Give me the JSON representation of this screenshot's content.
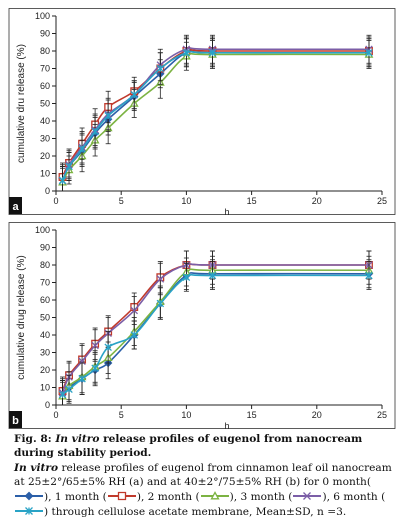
{
  "chart_data": [
    {
      "type": "line",
      "panel_label": "a",
      "xlabel": "h",
      "ylabel": "cumulative dru release (%)",
      "xlim": [
        0,
        25
      ],
      "ylim": [
        0,
        100
      ],
      "x_ticks": [
        "0",
        "5",
        "10",
        "15",
        "20",
        "25"
      ],
      "y_ticks": [
        "0",
        "10",
        "20",
        "30",
        "40",
        "50",
        "60",
        "70",
        "80",
        "90",
        "100"
      ],
      "grid": false,
      "x": [
        0.5,
        1,
        2,
        3,
        4,
        6,
        8,
        10,
        12,
        24
      ],
      "series": [
        {
          "name": "0 month",
          "color": "#2b5fa8",
          "marker": "diamond",
          "values": [
            7,
            14,
            23,
            33,
            41,
            54,
            67,
            79,
            79,
            79
          ],
          "errors": [
            8,
            8,
            9,
            9,
            9,
            8,
            8,
            8,
            8,
            8
          ]
        },
        {
          "name": "1 month",
          "color": "#c0392b",
          "marker": "square",
          "values": [
            8,
            16,
            27,
            38,
            48,
            57,
            70,
            80,
            80,
            80
          ],
          "errors": [
            8,
            8,
            9,
            9,
            9,
            8,
            9,
            8,
            8,
            8
          ]
        },
        {
          "name": "2 month",
          "color": "#7cb342",
          "marker": "triangle",
          "values": [
            5,
            12,
            20,
            29,
            36,
            50,
            62,
            77,
            78,
            78
          ],
          "errors": [
            8,
            8,
            9,
            9,
            9,
            8,
            9,
            8,
            8,
            8
          ]
        },
        {
          "name": "3 month",
          "color": "#7b5ea7",
          "marker": "x",
          "values": [
            6,
            15,
            25,
            35,
            44,
            55,
            72,
            81,
            81,
            81
          ],
          "errors": [
            8,
            8,
            9,
            9,
            9,
            8,
            9,
            8,
            8,
            8
          ]
        },
        {
          "name": "6 month",
          "color": "#29a3c6",
          "marker": "star",
          "values": [
            6,
            14,
            24,
            34,
            43,
            55,
            70,
            79,
            79,
            79
          ],
          "errors": [
            8,
            8,
            9,
            9,
            9,
            8,
            9,
            8,
            8,
            8
          ]
        }
      ]
    },
    {
      "type": "line",
      "panel_label": "b",
      "xlabel": "h",
      "ylabel": "cumulative drug release (%)",
      "xlim": [
        0,
        25
      ],
      "ylim": [
        0,
        100
      ],
      "x_ticks": [
        "0",
        "5",
        "10",
        "15",
        "20",
        "25"
      ],
      "y_ticks": [
        "0",
        "10",
        "20",
        "30",
        "40",
        "50",
        "60",
        "70",
        "80",
        "90",
        "100"
      ],
      "grid": false,
      "x": [
        0.5,
        1,
        2,
        3,
        4,
        6,
        8,
        10,
        12,
        24
      ],
      "series": [
        {
          "name": "0 month",
          "color": "#2b5fa8",
          "marker": "diamond",
          "values": [
            6,
            10,
            15,
            20,
            24,
            40,
            58,
            74,
            75,
            75
          ],
          "errors": [
            8,
            8,
            9,
            9,
            9,
            8,
            9,
            8,
            8,
            8
          ]
        },
        {
          "name": "1 month",
          "color": "#c0392b",
          "marker": "square",
          "values": [
            8,
            17,
            26,
            35,
            42,
            56,
            73,
            80,
            80,
            80
          ],
          "errors": [
            8,
            8,
            9,
            9,
            9,
            8,
            9,
            8,
            8,
            8
          ]
        },
        {
          "name": "2 month",
          "color": "#7cb342",
          "marker": "triangle",
          "values": [
            5,
            11,
            16,
            22,
            27,
            42,
            59,
            76,
            77,
            77
          ],
          "errors": [
            8,
            8,
            9,
            9,
            9,
            8,
            9,
            8,
            8,
            8
          ]
        },
        {
          "name": "3 month",
          "color": "#7b5ea7",
          "marker": "x",
          "values": [
            7,
            16,
            25,
            34,
            41,
            54,
            72,
            80,
            80,
            80
          ],
          "errors": [
            8,
            8,
            9,
            9,
            9,
            8,
            9,
            8,
            8,
            8
          ]
        },
        {
          "name": "6 month",
          "color": "#29a3c6",
          "marker": "star",
          "values": [
            6,
            9,
            15,
            21,
            33,
            40,
            58,
            73,
            74,
            74
          ],
          "errors": [
            8,
            8,
            9,
            9,
            9,
            8,
            9,
            8,
            8,
            8
          ]
        }
      ]
    }
  ],
  "caption": {
    "title_prefix": "Fig. 8: ",
    "title_italic": "In vitro",
    "title_rest": " release profiles of eugenol from nanocream during stability period.",
    "body_lead": "In vitro",
    "body_1": " release profiles of eugenol from cinnamon leaf oil nanocream at 25±2°/65±5% RH (a) and at 40±2°/75±5% RH (b) for 0 month(",
    "body_2": "), 1 month (",
    "body_3": "), 2 month (",
    "body_4": "), 3 month (",
    "body_5": "), 6 month (",
    "body_6": ") through cellulose acetate membrane, Mean±SD, n =3."
  }
}
